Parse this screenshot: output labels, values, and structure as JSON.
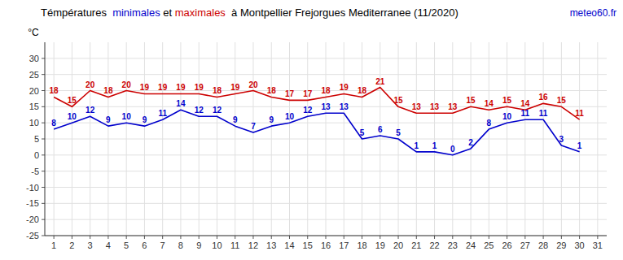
{
  "chart_data": {
    "type": "line",
    "title": "Témpératures  minimales et maximales  à Montpellier Frejorgues Mediterranee (11/2020)",
    "y_label": "°C",
    "annotations": [
      {
        "text": "meteo60.fr",
        "color": "#0000cc"
      }
    ],
    "x": [
      1,
      2,
      3,
      4,
      5,
      6,
      7,
      8,
      9,
      10,
      11,
      12,
      13,
      14,
      15,
      16,
      17,
      18,
      19,
      20,
      21,
      22,
      23,
      24,
      25,
      26,
      27,
      28,
      29,
      30,
      31
    ],
    "series": [
      {
        "name": "maximales",
        "color": "#cc0000",
        "values": [
          18,
          15,
          20,
          18,
          20,
          19,
          19,
          19,
          19,
          18,
          19,
          20,
          18,
          17,
          17,
          18,
          19,
          18,
          21,
          15,
          13,
          13,
          13,
          15,
          14,
          15,
          14,
          16,
          15,
          11,
          null
        ]
      },
      {
        "name": "minimales",
        "color": "#0000cc",
        "values": [
          8,
          10,
          12,
          9,
          10,
          9,
          11,
          14,
          12,
          12,
          9,
          7,
          9,
          10,
          12,
          13,
          13,
          5,
          6,
          5,
          1,
          1,
          0,
          2,
          8,
          10,
          11,
          11,
          3,
          1,
          null
        ]
      }
    ],
    "xlim": [
      0.5,
      31.5
    ],
    "xticks": [
      1,
      2,
      3,
      4,
      5,
      6,
      7,
      8,
      9,
      10,
      11,
      12,
      13,
      14,
      15,
      16,
      17,
      18,
      19,
      20,
      21,
      22,
      23,
      24,
      25,
      26,
      27,
      28,
      29,
      30,
      31
    ],
    "ylim": [
      -25,
      35
    ],
    "yticks": [
      -25,
      -20,
      -15,
      -10,
      -5,
      0,
      5,
      10,
      15,
      20,
      25,
      30
    ],
    "grid": true,
    "data_labels": true
  }
}
